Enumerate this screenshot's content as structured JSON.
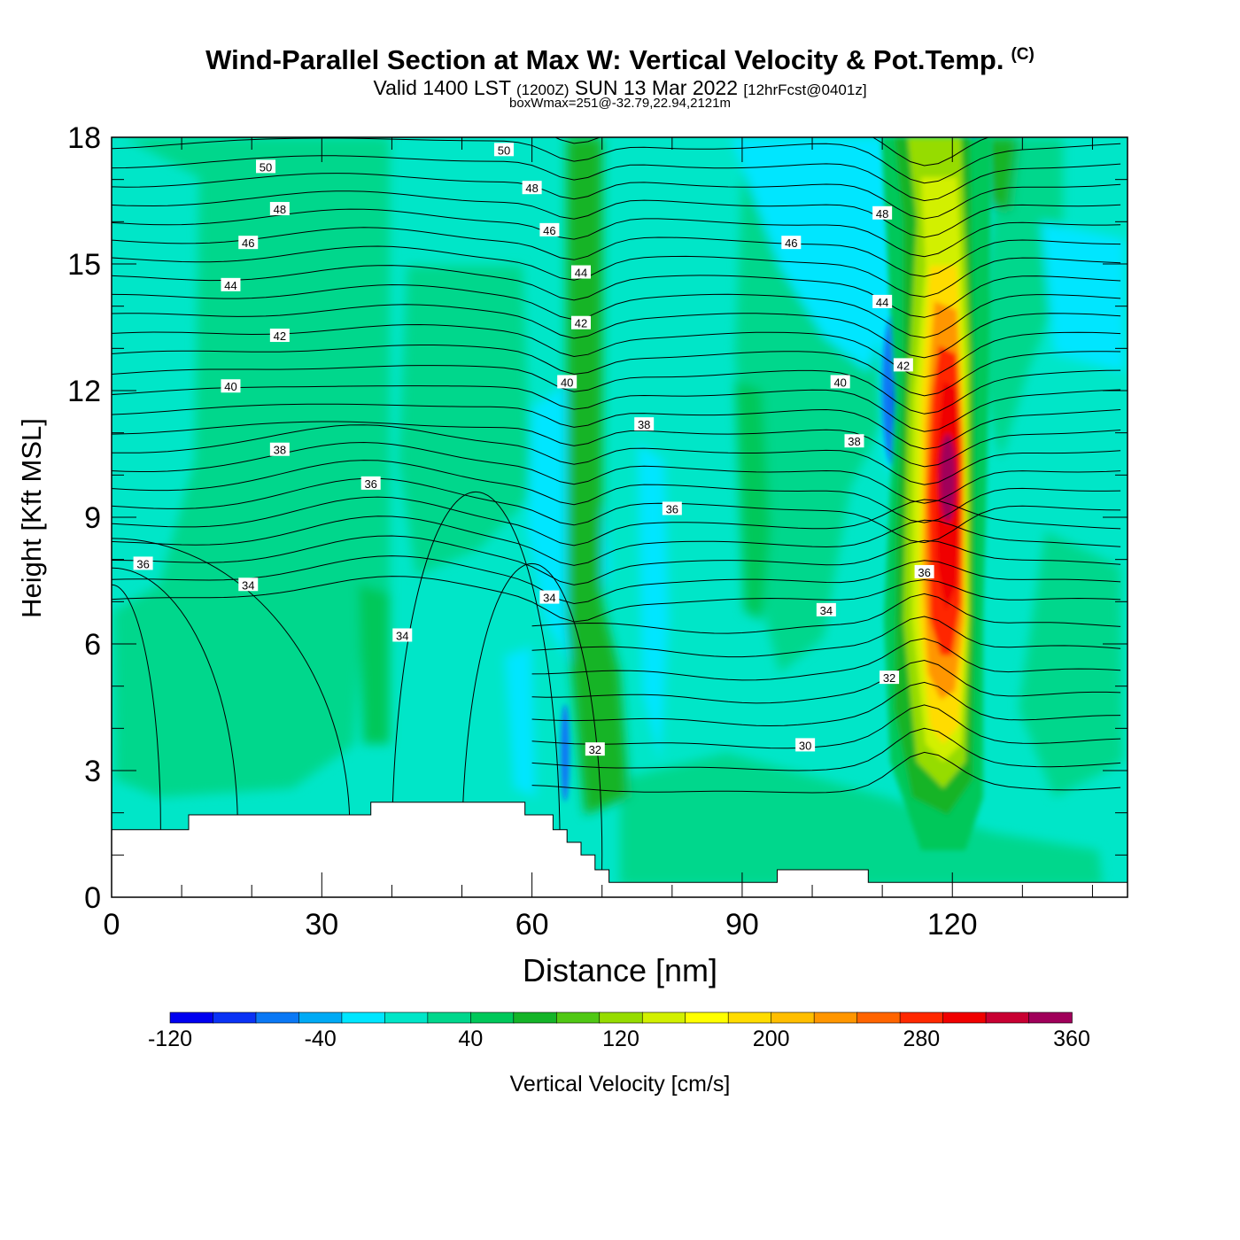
{
  "header": {
    "title": "Wind-Parallel Section at Max W: Vertical Velocity & Pot.Temp.",
    "copyright": "(C)",
    "valid_prefix": "Valid 1400 LST",
    "valid_utc": "(1200Z)",
    "valid_date": "SUN 13 Mar 2022",
    "forecast": "[12hrFcst@0401z]",
    "boxw": "boxWmax=251@-32.79,22.94,2121m"
  },
  "chart_data": {
    "type": "heatmap",
    "xlabel": "Distance [nm]",
    "ylabel": "Height [Kft MSL]",
    "xlim": [
      0,
      145
    ],
    "ylim": [
      0,
      18
    ],
    "xticks": [
      0,
      30,
      60,
      90,
      120
    ],
    "yticks": [
      0,
      3,
      6,
      9,
      12,
      15,
      18
    ],
    "colorbar": {
      "label": "Vertical Velocity [cm/s]",
      "range": [
        -120,
        360
      ],
      "tick_values": [
        -120,
        -40,
        40,
        120,
        200,
        280,
        360
      ],
      "tick_labels": [
        "-120",
        "-40",
        "40",
        "120",
        "200",
        "280",
        "360"
      ],
      "colors": [
        "#0000f0",
        "#0a32f5",
        "#0a78f5",
        "#00aaf5",
        "#00e6ff",
        "#00e6c8",
        "#00d78c",
        "#00c85a",
        "#14b428",
        "#50c814",
        "#96dc00",
        "#d2f000",
        "#ffff00",
        "#ffdc00",
        "#ffbe00",
        "#ff9600",
        "#ff6400",
        "#ff2800",
        "#f00000",
        "#c80032",
        "#a0005a"
      ]
    },
    "isentropes": {
      "field": "Pot.Temp.",
      "labels": [
        {
          "value": "50",
          "x": 22,
          "y": 17.3
        },
        {
          "value": "50",
          "x": 56,
          "y": 17.7
        },
        {
          "value": "48",
          "x": 60,
          "y": 16.8
        },
        {
          "value": "48",
          "x": 24,
          "y": 16.3
        },
        {
          "value": "48",
          "x": 110,
          "y": 16.2
        },
        {
          "value": "46",
          "x": 19.5,
          "y": 15.5
        },
        {
          "value": "46",
          "x": 62.5,
          "y": 15.8
        },
        {
          "value": "46",
          "x": 97,
          "y": 15.5
        },
        {
          "value": "44",
          "x": 17,
          "y": 14.5
        },
        {
          "value": "44",
          "x": 67,
          "y": 14.8
        },
        {
          "value": "44",
          "x": 110,
          "y": 14.1
        },
        {
          "value": "42",
          "x": 24,
          "y": 13.3
        },
        {
          "value": "42",
          "x": 67,
          "y": 13.6
        },
        {
          "value": "42",
          "x": 113,
          "y": 12.6
        },
        {
          "value": "40",
          "x": 17,
          "y": 12.1
        },
        {
          "value": "40",
          "x": 65,
          "y": 12.2
        },
        {
          "value": "40",
          "x": 104,
          "y": 12.2
        },
        {
          "value": "38",
          "x": 24,
          "y": 10.6
        },
        {
          "value": "38",
          "x": 76,
          "y": 11.2
        },
        {
          "value": "38",
          "x": 106,
          "y": 10.8
        },
        {
          "value": "36",
          "x": 37,
          "y": 9.8
        },
        {
          "value": "36",
          "x": 80,
          "y": 9.2
        },
        {
          "value": "36",
          "x": 4.5,
          "y": 7.9
        },
        {
          "value": "36",
          "x": 116,
          "y": 7.7
        },
        {
          "value": "34",
          "x": 19.5,
          "y": 7.4
        },
        {
          "value": "34",
          "x": 62.5,
          "y": 7.1
        },
        {
          "value": "34",
          "x": 41.5,
          "y": 6.2
        },
        {
          "value": "34",
          "x": 102,
          "y": 6.8
        },
        {
          "value": "32",
          "x": 69,
          "y": 3.5
        },
        {
          "value": "32",
          "x": 111,
          "y": 5.2
        },
        {
          "value": "30",
          "x": 99,
          "y": 3.6
        }
      ]
    },
    "terrain_kft": {
      "x": [
        0,
        11,
        11,
        37,
        37,
        59,
        59,
        63,
        63,
        65,
        65,
        67,
        67,
        69,
        69,
        71,
        71,
        95,
        95,
        108,
        108,
        145
      ],
      "top": [
        1.6,
        1.6,
        1.95,
        1.95,
        2.25,
        2.25,
        1.95,
        1.95,
        1.6,
        1.6,
        1.3,
        1.3,
        1.0,
        1.0,
        0.65,
        0.65,
        0.35,
        0.35,
        0.65,
        0.65,
        0.35,
        0.35
      ]
    }
  }
}
